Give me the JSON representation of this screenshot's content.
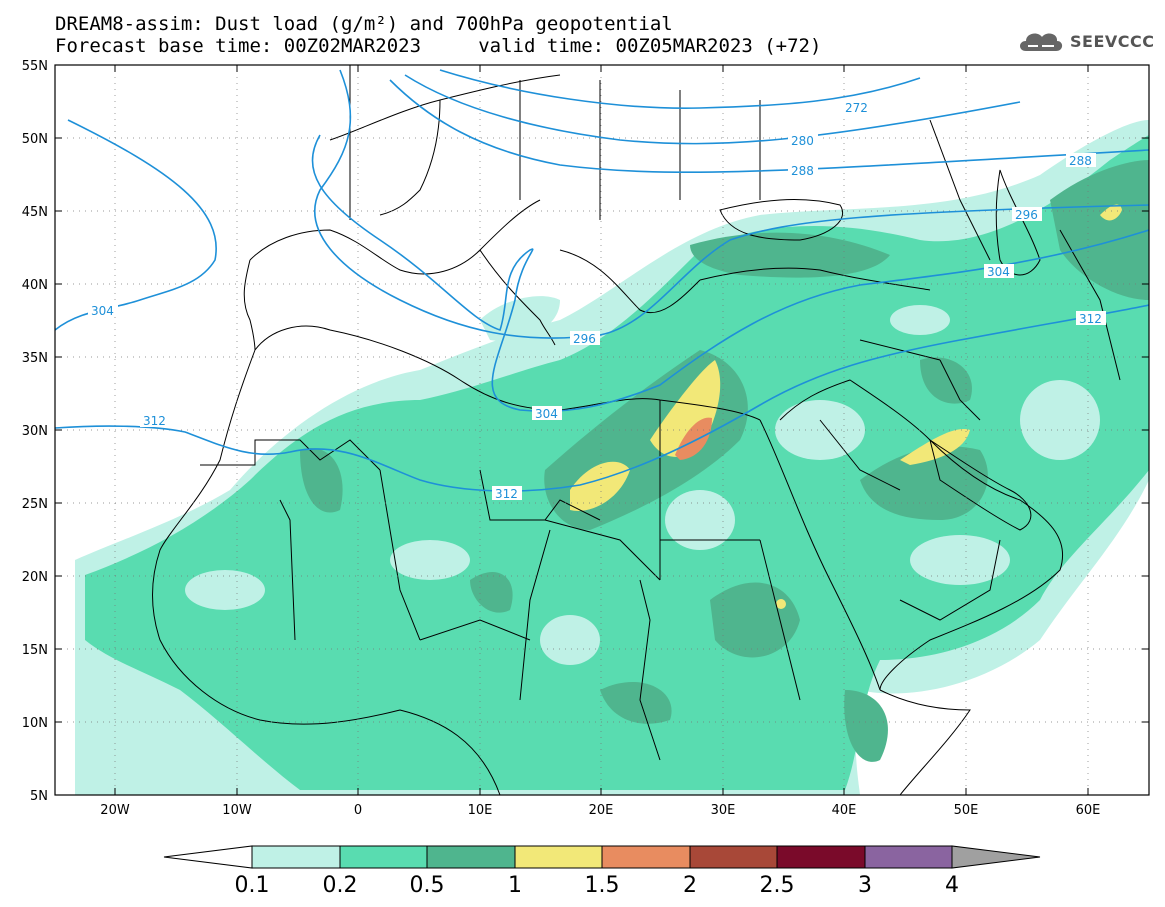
{
  "header": {
    "title_line1": "DREAM8-assim: Dust load (g/m²) and 700hPa geopotential",
    "title_line2": "Forecast base time: 00Z02MAR2023     valid time: 00Z05MAR2023 (+72)",
    "logo_text": "SEEVCCC"
  },
  "axes": {
    "lat_labels": [
      "55N",
      "50N",
      "45N",
      "40N",
      "35N",
      "30N",
      "25N",
      "20N",
      "15N",
      "10N",
      "5N"
    ],
    "lon_labels": [
      "20W",
      "10W",
      "0",
      "10E",
      "20E",
      "30E",
      "40E",
      "50E",
      "60E"
    ]
  },
  "contour_labels": [
    "272",
    "280",
    "288",
    "288",
    "296",
    "296",
    "304",
    "304",
    "304",
    "312",
    "312",
    "312"
  ],
  "colorbar": {
    "labels": [
      "0.1",
      "0.2",
      "0.5",
      "1",
      "1.5",
      "2",
      "2.5",
      "3",
      "4"
    ],
    "colors": [
      "#bff1e6",
      "#59dcb0",
      "#4fb58e",
      "#f2e878",
      "#e88c60",
      "#a84838",
      "#7a0a2a",
      "#8a64a0"
    ]
  },
  "colors": {
    "contour": "#1e90d8",
    "dust_low": "#bff1e6",
    "dust_mid": "#59dcb0",
    "dust_high": "#4fb58e"
  }
}
